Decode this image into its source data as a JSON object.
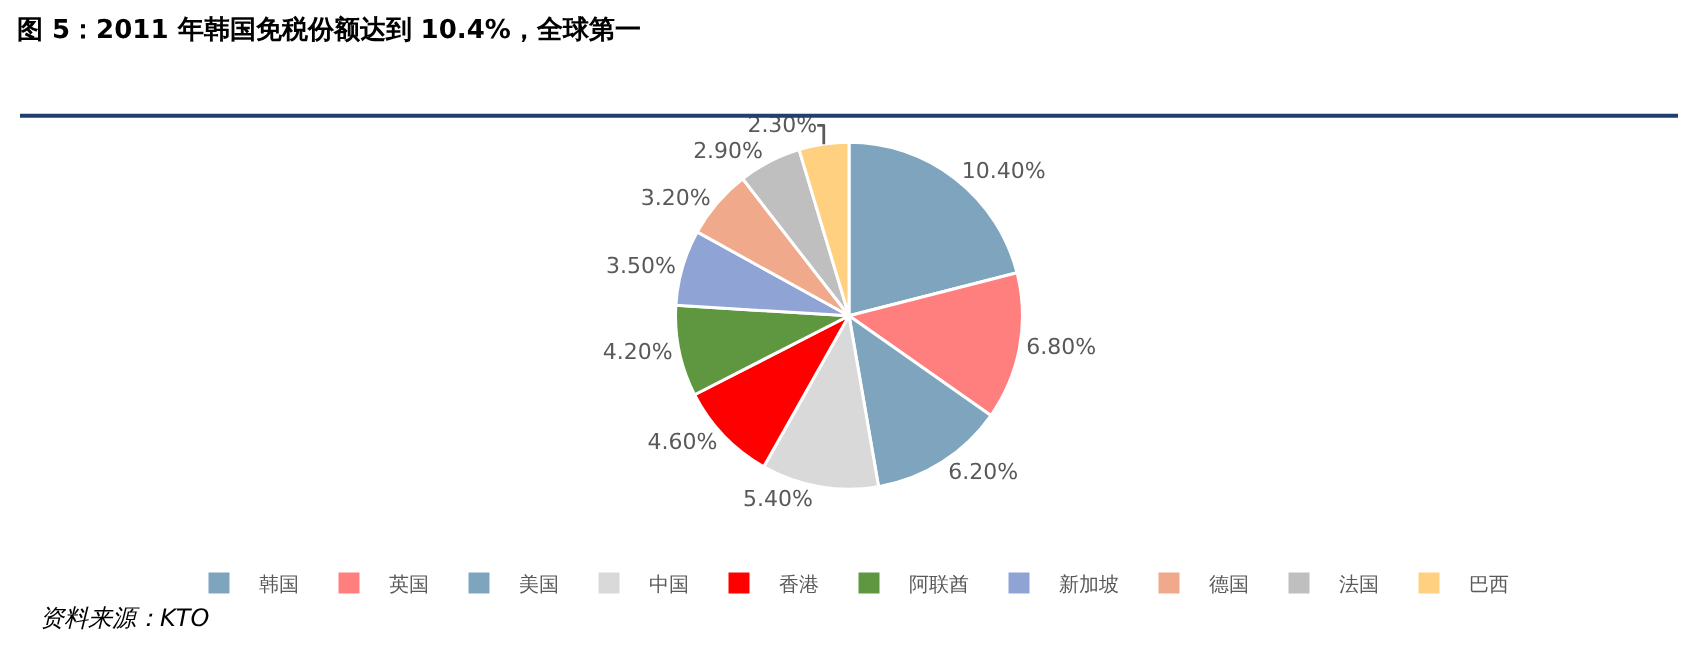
{
  "chart_data": {
    "type": "pie",
    "title": "图 5：2011 年韩国免税份额达到 10.4%，全球第一",
    "categories": [
      "韩国",
      "英国",
      "美国",
      "中国",
      "香港",
      "阿联酋",
      "新加坡",
      "德国",
      "法国",
      "巴西"
    ],
    "values": [
      10.4,
      6.8,
      6.2,
      5.4,
      4.6,
      4.2,
      3.5,
      3.2,
      2.9,
      2.3
    ],
    "value_labels": [
      "10.40%",
      "6.80%",
      "6.20%",
      "5.40%",
      "4.60%",
      "4.20%",
      "3.50%",
      "3.20%",
      "2.90%",
      "2.30%"
    ],
    "colors": [
      "#7fa5be",
      "#ff7f7f",
      "#7fa5be",
      "#d9d9d9",
      "#ff0000",
      "#5f9640",
      "#8fa3d4",
      "#f0a98a",
      "#bfbfbf",
      "#ffd07f"
    ],
    "legend": "bottom",
    "annotations": [
      "资料来源：KTO"
    ]
  }
}
